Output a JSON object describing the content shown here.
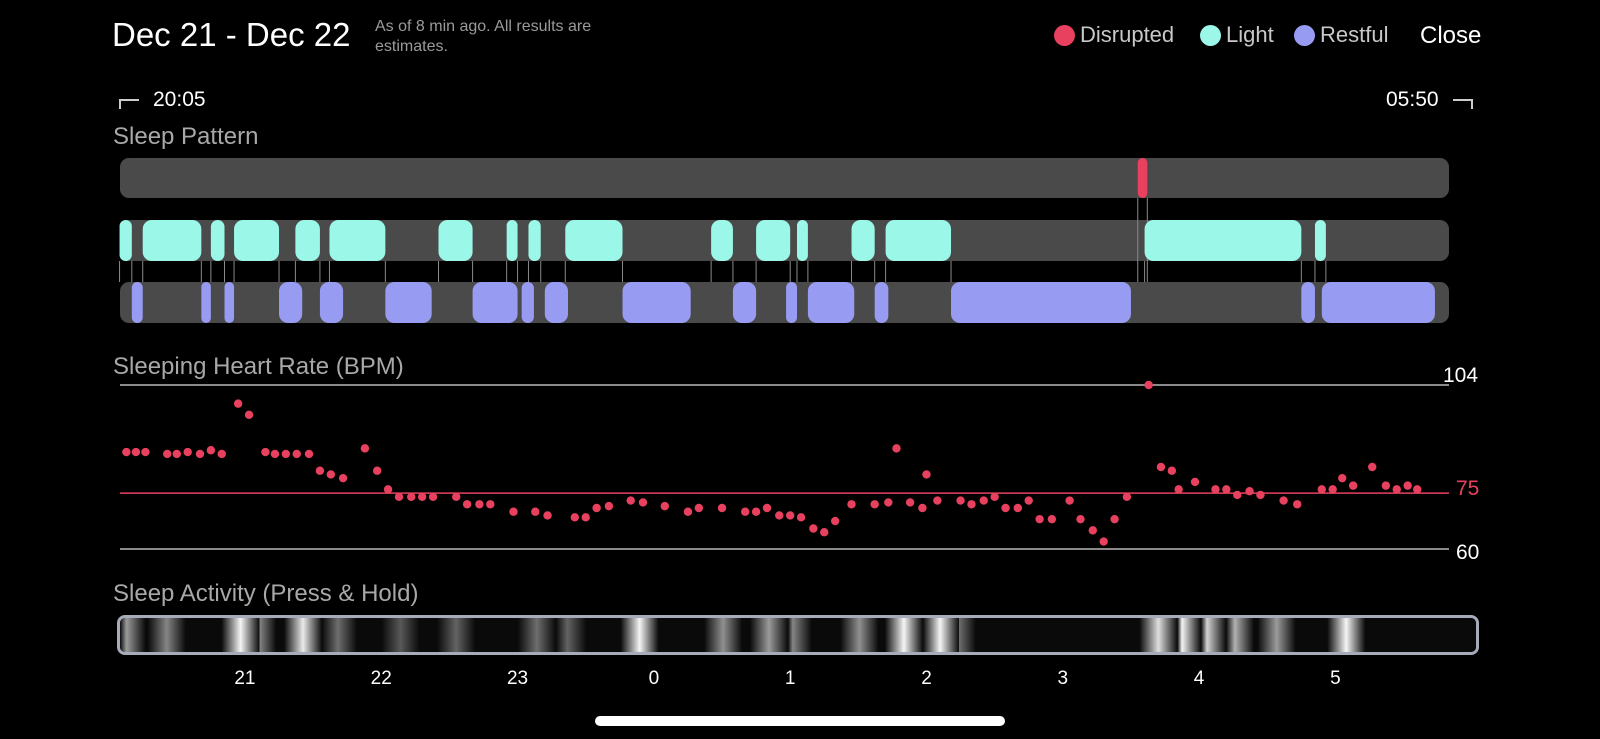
{
  "header": {
    "title": "Dec 21 - Dec 22",
    "note": "As of 8 min ago. All results are estimates.",
    "close_label": "Close"
  },
  "legend": [
    {
      "label": "Disrupted",
      "color": "#e8415f"
    },
    {
      "label": "Light",
      "color": "#9bf8e8"
    },
    {
      "label": "Restful",
      "color": "#979cf2"
    }
  ],
  "range": {
    "start": "20:05",
    "end": "05:50"
  },
  "sleep_pattern": {
    "title": "Sleep Pattern",
    "colors": {
      "track": "#4a4a4a",
      "connector": "#8a8a8a"
    },
    "disrupted": [
      [
        3.55,
        3.62
      ]
    ],
    "light": [
      [
        20.08,
        20.17
      ],
      [
        20.25,
        20.68
      ],
      [
        20.75,
        20.85
      ],
      [
        20.92,
        21.25
      ],
      [
        21.37,
        21.55
      ],
      [
        21.62,
        22.03
      ],
      [
        22.42,
        22.67
      ],
      [
        22.92,
        23.0
      ],
      [
        23.08,
        23.17
      ],
      [
        23.35,
        23.77
      ],
      [
        0.42,
        0.58
      ],
      [
        0.75,
        1.0
      ],
      [
        1.05,
        1.13
      ],
      [
        1.45,
        1.62
      ],
      [
        1.7,
        2.18
      ],
      [
        3.6,
        4.75
      ],
      [
        4.85,
        4.93
      ]
    ],
    "restful": [
      [
        20.17,
        20.25
      ],
      [
        20.68,
        20.75
      ],
      [
        20.85,
        20.92
      ],
      [
        21.25,
        21.42
      ],
      [
        21.55,
        21.72
      ],
      [
        22.03,
        22.37
      ],
      [
        22.67,
        23.0
      ],
      [
        23.03,
        23.12
      ],
      [
        23.2,
        23.37
      ],
      [
        23.77,
        0.27
      ],
      [
        0.58,
        0.75
      ],
      [
        0.97,
        1.05
      ],
      [
        1.13,
        1.47
      ],
      [
        1.62,
        1.72
      ],
      [
        2.18,
        3.5
      ],
      [
        4.75,
        4.85
      ],
      [
        4.9,
        5.73
      ]
    ]
  },
  "heart_rate": {
    "title": "Sleeping Heart Rate (BPM)",
    "max_label": "104",
    "avg_label": "75",
    "min_label": "60",
    "max": 104,
    "avg": 75,
    "min": 60,
    "point_color": "#e8415f"
  },
  "activity": {
    "title": "Sleep Activity (Press & Hold)"
  },
  "x_axis": {
    "ticks": [
      "21",
      "22",
      "23",
      "0",
      "1",
      "2",
      "3",
      "4",
      "5"
    ]
  },
  "chart_data": {
    "type": "scatter",
    "title": "Sleeping Heart Rate (BPM)",
    "xlabel": "",
    "ylabel": "",
    "ylim": [
      60,
      104
    ],
    "x_unit": "hour of night",
    "points": [
      [
        20.13,
        86
      ],
      [
        20.2,
        86
      ],
      [
        20.27,
        86
      ],
      [
        20.43,
        85.5
      ],
      [
        20.5,
        85.5
      ],
      [
        20.58,
        86
      ],
      [
        20.67,
        85.5
      ],
      [
        20.75,
        86.5
      ],
      [
        20.83,
        85.5
      ],
      [
        20.95,
        99
      ],
      [
        21.03,
        96
      ],
      [
        21.15,
        86
      ],
      [
        21.22,
        85.5
      ],
      [
        21.3,
        85.5
      ],
      [
        21.38,
        85.5
      ],
      [
        21.47,
        85.5
      ],
      [
        21.55,
        81
      ],
      [
        21.63,
        80
      ],
      [
        21.72,
        79
      ],
      [
        21.88,
        87
      ],
      [
        21.97,
        81
      ],
      [
        22.05,
        76
      ],
      [
        22.13,
        74
      ],
      [
        22.22,
        74
      ],
      [
        22.3,
        74
      ],
      [
        22.38,
        74
      ],
      [
        22.55,
        74
      ],
      [
        22.63,
        72
      ],
      [
        22.72,
        72
      ],
      [
        22.8,
        72
      ],
      [
        22.97,
        70
      ],
      [
        23.13,
        70
      ],
      [
        23.22,
        69
      ],
      [
        23.42,
        68.5
      ],
      [
        23.5,
        68.5
      ],
      [
        23.58,
        71
      ],
      [
        23.67,
        71.5
      ],
      [
        23.83,
        73
      ],
      [
        23.92,
        72.5
      ],
      [
        0.08,
        71.5
      ],
      [
        0.25,
        70
      ],
      [
        0.33,
        71
      ],
      [
        0.5,
        71
      ],
      [
        0.67,
        70
      ],
      [
        0.75,
        70
      ],
      [
        0.83,
        71
      ],
      [
        0.92,
        69
      ],
      [
        1.0,
        69
      ],
      [
        1.08,
        68.5
      ],
      [
        1.17,
        65.5
      ],
      [
        1.25,
        64.5
      ],
      [
        1.33,
        67.5
      ],
      [
        1.45,
        72
      ],
      [
        1.62,
        72
      ],
      [
        1.72,
        72.5
      ],
      [
        1.78,
        87
      ],
      [
        1.88,
        72.5
      ],
      [
        1.97,
        71
      ],
      [
        2.0,
        80
      ],
      [
        2.08,
        73
      ],
      [
        2.25,
        73
      ],
      [
        2.33,
        72
      ],
      [
        2.42,
        73
      ],
      [
        2.5,
        74
      ],
      [
        2.58,
        71
      ],
      [
        2.67,
        71
      ],
      [
        2.75,
        73
      ],
      [
        2.83,
        68
      ],
      [
        2.92,
        68
      ],
      [
        3.05,
        73
      ],
      [
        3.13,
        68
      ],
      [
        3.22,
        65
      ],
      [
        3.3,
        62
      ],
      [
        3.38,
        68
      ],
      [
        3.47,
        74
      ],
      [
        3.63,
        104
      ],
      [
        3.72,
        82
      ],
      [
        3.8,
        81
      ],
      [
        3.85,
        76
      ],
      [
        3.97,
        78
      ],
      [
        4.12,
        76
      ],
      [
        4.2,
        76
      ],
      [
        4.28,
        74.5
      ],
      [
        4.37,
        75.5
      ],
      [
        4.45,
        74.5
      ],
      [
        4.62,
        73
      ],
      [
        4.72,
        72
      ],
      [
        4.9,
        76
      ],
      [
        4.98,
        76
      ],
      [
        5.05,
        79
      ],
      [
        5.13,
        77
      ],
      [
        5.27,
        82
      ],
      [
        5.37,
        77
      ],
      [
        5.45,
        76
      ],
      [
        5.53,
        77
      ],
      [
        5.6,
        76
      ]
    ]
  }
}
